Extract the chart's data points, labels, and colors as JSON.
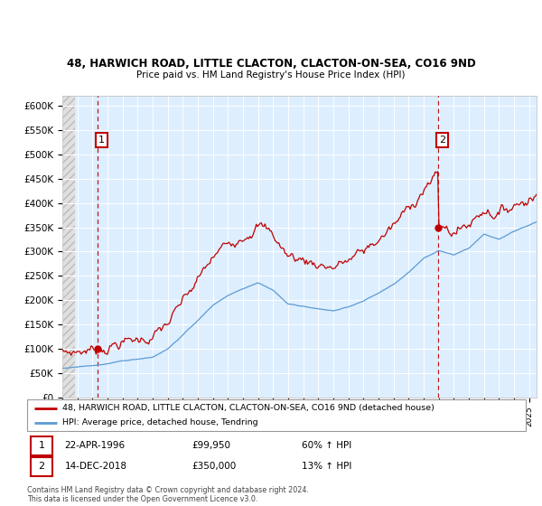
{
  "title_line1": "48, HARWICH ROAD, LITTLE CLACTON, CLACTON-ON-SEA, CO16 9ND",
  "title_line2": "Price paid vs. HM Land Registry's House Price Index (HPI)",
  "ylim": [
    0,
    620000
  ],
  "yticks": [
    0,
    50000,
    100000,
    150000,
    200000,
    250000,
    300000,
    350000,
    400000,
    450000,
    500000,
    550000,
    600000
  ],
  "ytick_labels": [
    "£0",
    "£50K",
    "£100K",
    "£150K",
    "£200K",
    "£250K",
    "£300K",
    "£350K",
    "£400K",
    "£450K",
    "£500K",
    "£550K",
    "£600K"
  ],
  "xlim_start": 1994.0,
  "xlim_end": 2025.5,
  "hpi_color": "#5b9bd5",
  "price_color": "#c00000",
  "sale1_year": 1996.31,
  "sale1_price": 99950,
  "sale1_label": "1",
  "sale1_date": "22-APR-1996",
  "sale1_amount": "£99,950",
  "sale1_hpi": "60% ↑ HPI",
  "sale2_year": 2018.95,
  "sale2_price": 350000,
  "sale2_label": "2",
  "sale2_date": "14-DEC-2018",
  "sale2_amount": "£350,000",
  "sale2_hpi": "13% ↑ HPI",
  "legend_line1": "48, HARWICH ROAD, LITTLE CLACTON, CLACTON-ON-SEA, CO16 9ND (detached house)",
  "legend_line2": "HPI: Average price, detached house, Tendring",
  "footer": "Contains HM Land Registry data © Crown copyright and database right 2024.\nThis data is licensed under the Open Government Licence v3.0.",
  "bg_left_color": "#e0e0e0",
  "bg_right_color": "#ddeeff",
  "grid_color": "#ffffff",
  "hatch_color": "#bbbbbb"
}
